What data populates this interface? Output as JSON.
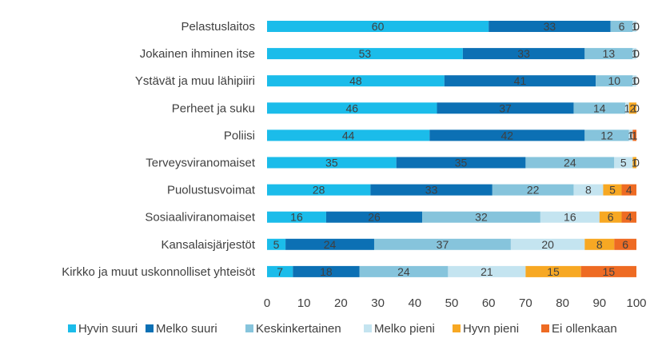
{
  "chart_data": {
    "type": "bar",
    "orientation": "horizontal",
    "stacked": true,
    "categories": [
      "Pelastuslaitos",
      "Jokainen ihminen itse",
      "Ystävät ja muu lähipiiri",
      "Perheet ja suku",
      "Poliisi",
      "Terveysviranomaiset",
      "Puolustusvoimat",
      "Sosiaaliviranomaiset",
      "Kansalaisjärjestöt",
      "Kirkko ja muut uskonnolliset yhteisöt"
    ],
    "series": [
      {
        "name": "Hyvin suuri",
        "color": "#1bbcea",
        "values": [
          60,
          53,
          48,
          46,
          44,
          35,
          28,
          16,
          5,
          7
        ]
      },
      {
        "name": "Melko suuri",
        "color": "#0c70b4",
        "values": [
          33,
          33,
          41,
          37,
          42,
          35,
          33,
          26,
          24,
          18
        ]
      },
      {
        "name": "Keskinkertainen",
        "color": "#86c4dc",
        "values": [
          6,
          13,
          10,
          14,
          12,
          24,
          22,
          32,
          37,
          24
        ]
      },
      {
        "name": "Melko pieni",
        "color": "#c4e4f0",
        "values": [
          1,
          1,
          1,
          1,
          1,
          5,
          8,
          16,
          20,
          21
        ]
      },
      {
        "name": "Hyvn pieni",
        "color": "#f7a823",
        "values": [
          0,
          0,
          0,
          2,
          0,
          1,
          5,
          6,
          8,
          15
        ]
      },
      {
        "name": "Ei ollenkaan",
        "color": "#ee6b23",
        "values": [
          0,
          0,
          0,
          0,
          1,
          0,
          4,
          4,
          6,
          15
        ]
      }
    ],
    "xlim": [
      0,
      100
    ],
    "xticks": [
      0,
      10,
      20,
      30,
      40,
      50,
      60,
      70,
      80,
      90,
      100
    ],
    "legend": "bottom",
    "grid": false
  }
}
